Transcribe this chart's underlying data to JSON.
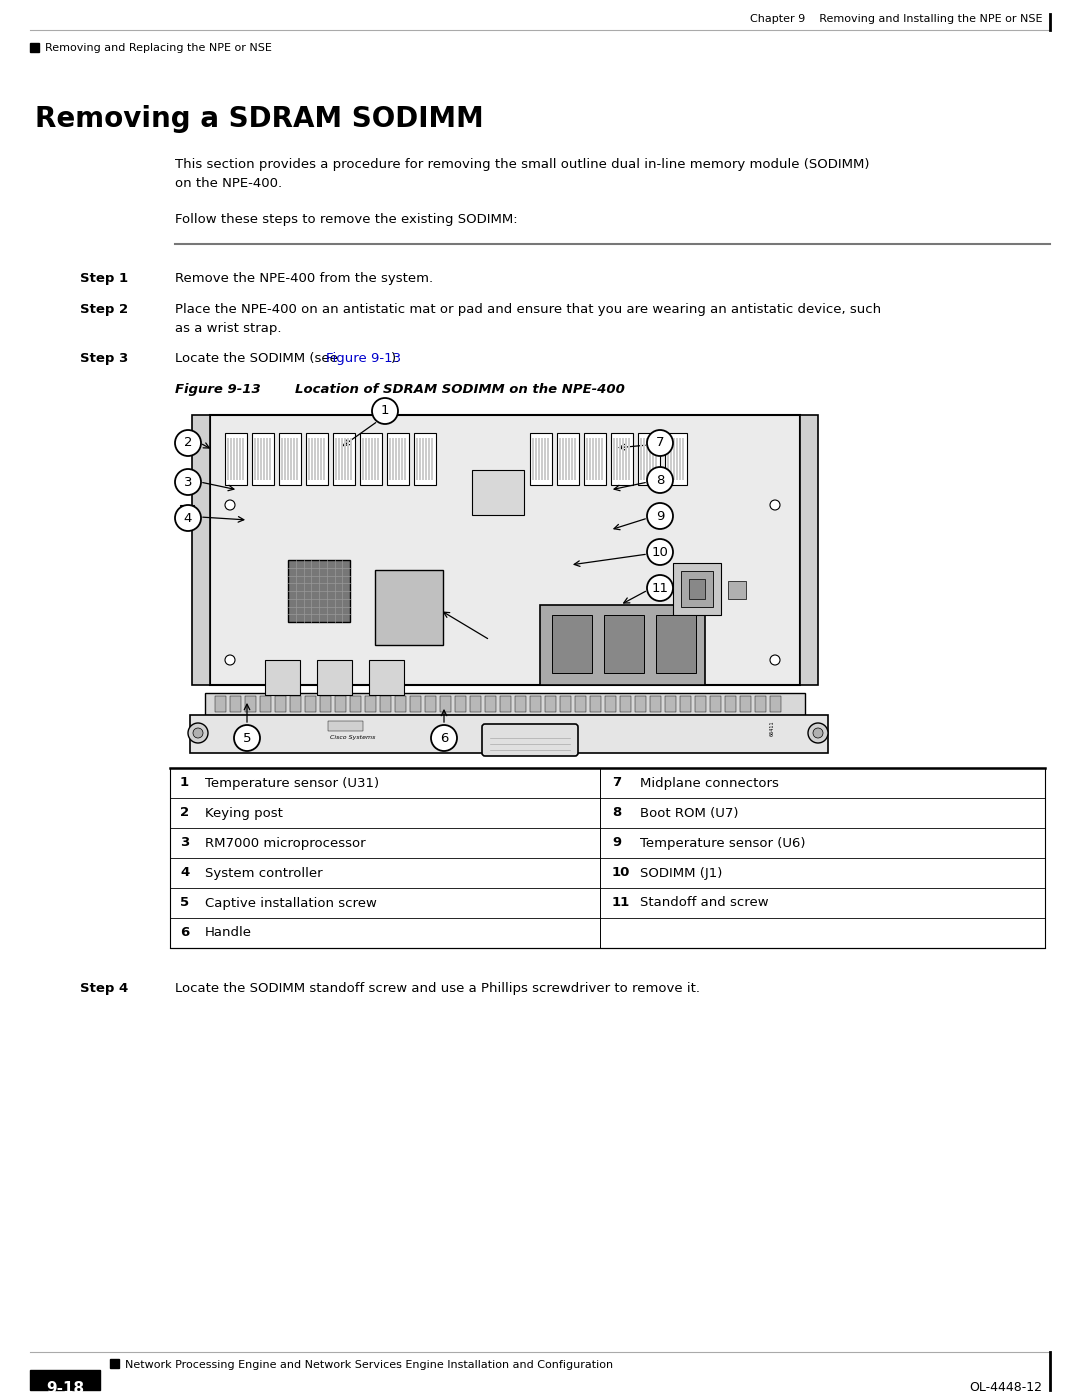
{
  "page_bg": "#ffffff",
  "header_right_text": "Chapter 9    Removing and Installing the NPE or NSE",
  "header_left_text": "Removing and Replacing the NPE or NSE",
  "section_title": "Removing a SDRAM SODIMM",
  "intro_paragraph1": "This section provides a procedure for removing the small outline dual in-line memory module (SODIMM)\non the NPE-400.",
  "intro_paragraph2": "Follow these steps to remove the existing SODIMM:",
  "step1_label": "Step 1",
  "step1_text": "Remove the NPE-400 from the system.",
  "step2_label": "Step 2",
  "step2_text": "Place the NPE-400 on an antistatic mat or pad and ensure that you are wearing an antistatic device, such\nas a wrist strap.",
  "step3_label": "Step 3",
  "step3_text_before": "Locate the SODIMM (see ",
  "step3_link": "Figure 9-13",
  "step3_text_after": ").",
  "figure_label": "Figure 9-13",
  "figure_title": "Location of SDRAM SODIMM on the NPE-400",
  "table_data": [
    [
      "1",
      "Temperature sensor (U31)",
      "7",
      "Midplane connectors"
    ],
    [
      "2",
      "Keying post",
      "8",
      "Boot ROM (U7)"
    ],
    [
      "3",
      "RM7000 microprocessor",
      "9",
      "Temperature sensor (U6)"
    ],
    [
      "4",
      "System controller",
      "10",
      "SODIMM (J1)"
    ],
    [
      "5",
      "Captive installation screw",
      "11",
      "Standoff and screw"
    ],
    [
      "6",
      "Handle",
      "",
      ""
    ]
  ],
  "step4_label": "Step 4",
  "step4_text": "Locate the SODIMM standoff screw and use a Phillips screwdriver to remove it.",
  "footer_center_text": "Network Processing Engine and Network Services Engine Installation and Configuration",
  "footer_page_box": "9-18",
  "footer_right_text": "OL-4448-12",
  "link_color": "#0000cc",
  "text_color": "#000000",
  "gray_line_color": "#888888"
}
